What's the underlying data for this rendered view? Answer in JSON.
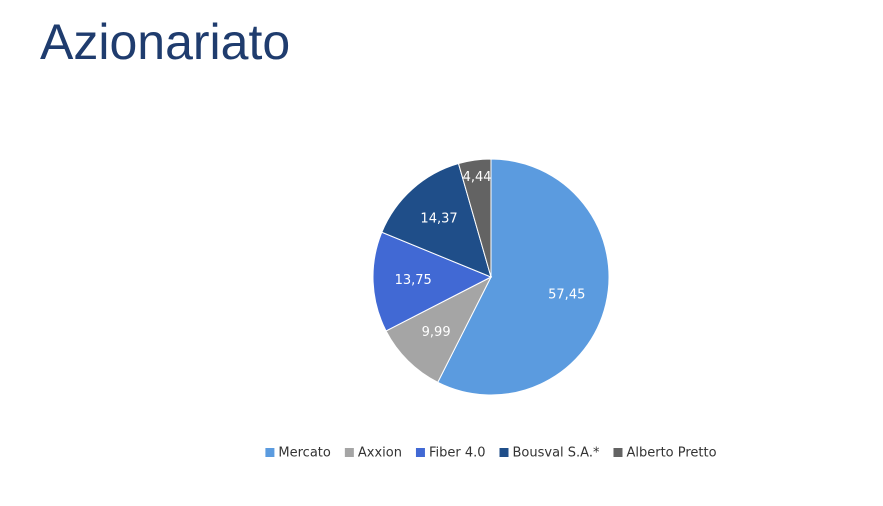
{
  "chart_data": {
    "type": "pie",
    "title": "Azionariato",
    "categories": [
      "Mercato",
      "Axxion",
      "Fiber 4.0",
      "Bousval S.A.*",
      "Alberto Pretto"
    ],
    "values": [
      57.45,
      9.99,
      13.75,
      14.37,
      4.44
    ],
    "value_labels": [
      "57,45",
      "9,99",
      "13,75",
      "14,37",
      "4,44"
    ],
    "colors": [
      "#5b9bdf",
      "#a5a5a5",
      "#4169d4",
      "#1f4e89",
      "#636363"
    ],
    "legend": "bottom"
  }
}
